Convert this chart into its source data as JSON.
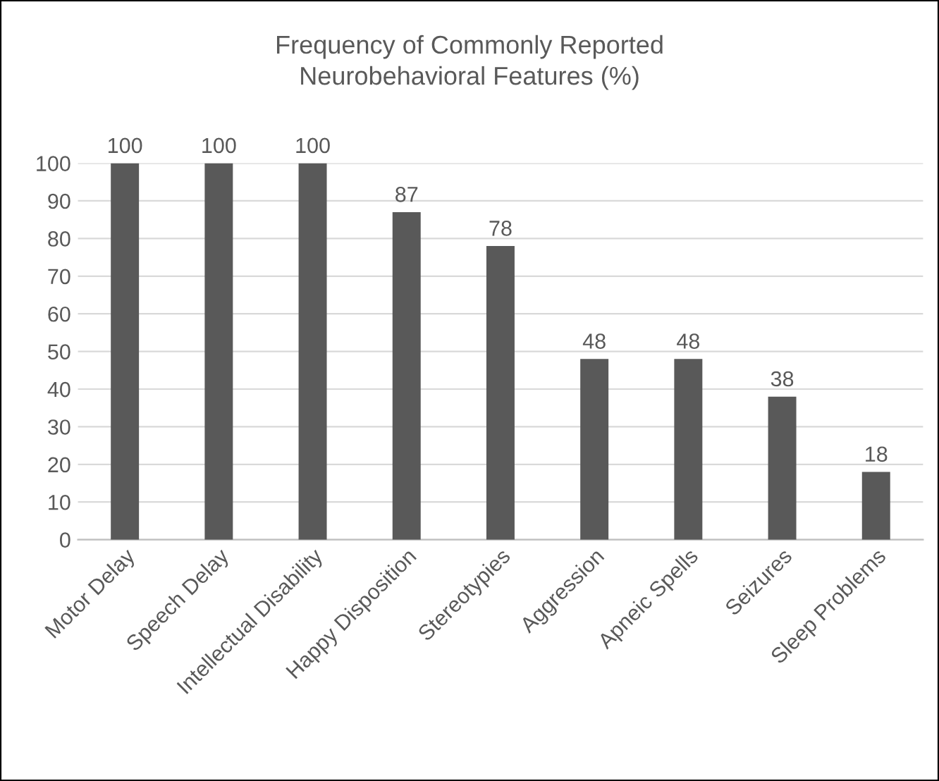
{
  "chart_data": {
    "type": "bar",
    "title": "Frequency of Commonly Reported\nNeurobehavioral Features (%)",
    "categories": [
      "Motor Delay",
      "Speech Delay",
      "Intellectual Disability",
      "Happy Disposition",
      "Stereotypies",
      "Aggression",
      "Apneic Spells",
      "Seizures",
      "Sleep Problems"
    ],
    "values": [
      100,
      100,
      100,
      87,
      78,
      48,
      48,
      38,
      18
    ],
    "color": "#595959",
    "ylim": [
      0,
      100
    ],
    "yticks": [
      0,
      10,
      20,
      30,
      40,
      50,
      60,
      70,
      80,
      90,
      100
    ],
    "grid": "y",
    "data_labels": true
  }
}
